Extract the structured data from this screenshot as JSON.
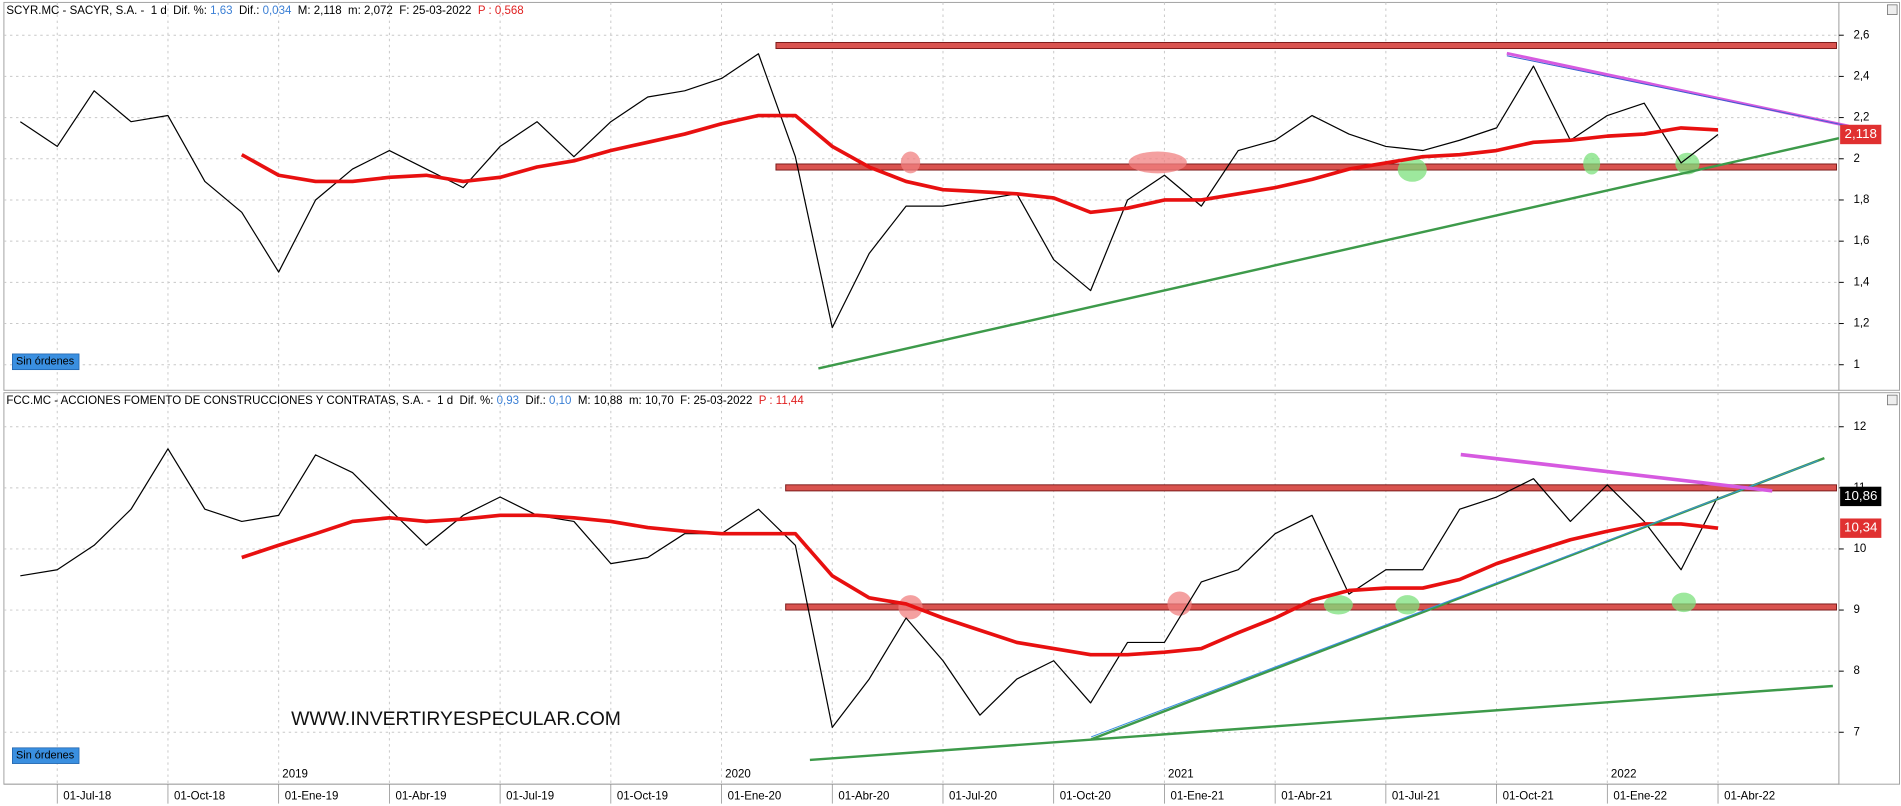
{
  "chart_data": [
    {
      "type": "line",
      "header": [
        {
          "text": "SCYR.MC - SACYR, S.A. -  1 d  Dif. %: ",
          "color": "#000000"
        },
        {
          "text": "1,63",
          "color": "#3a7fd5"
        },
        {
          "text": "  Dif.: ",
          "color": "#000000"
        },
        {
          "text": "0,034",
          "color": "#3a7fd5"
        },
        {
          "text": "  M: 2,118  m: 2,072  F: 25-03-2022  ",
          "color": "#000000"
        },
        {
          "text": "P : 0,568",
          "color": "#e02020"
        }
      ],
      "button": "Sin órdenes",
      "ylim": [
        0.876,
        2.665
      ],
      "yticks": [
        1,
        {
          "value": 1.2,
          "label": "1,2"
        },
        {
          "value": 1.4,
          "label": "1,4"
        },
        {
          "value": 1.6,
          "label": "1,6"
        },
        {
          "value": 1.8,
          "label": "1,8"
        },
        2,
        {
          "value": 2.2,
          "label": "2,2"
        },
        {
          "value": 2.4,
          "label": "2,4"
        },
        {
          "value": 2.6,
          "label": "2,6"
        }
      ],
      "grid": true,
      "levels": [
        {
          "value": 2.55,
          "color": "#d9534f"
        },
        {
          "value": 1.96,
          "color": "#d9534f"
        }
      ],
      "series": [
        {
          "color": "#000000",
          "width": 1,
          "values": [
            2.18,
            2.06,
            2.33,
            2.18,
            2.21,
            1.89,
            1.74,
            1.45,
            1.8,
            1.95,
            2.04,
            1.95,
            1.86,
            2.06,
            2.18,
            2.01,
            2.18,
            2.3,
            2.33,
            2.39,
            2.51,
            2.01,
            1.18,
            1.54,
            1.77,
            1.77,
            1.8,
            1.83,
            1.51,
            1.36,
            1.8,
            1.92,
            1.77,
            2.04,
            2.09,
            2.21,
            2.12,
            2.06,
            2.04,
            2.09,
            2.15,
            2.45,
            2.09,
            2.21,
            2.27,
            1.98,
            2.118,
            null,
            null,
            null
          ]
        },
        {
          "color": "#e81010",
          "width": 3,
          "values": [
            null,
            null,
            null,
            null,
            null,
            null,
            2.02,
            1.92,
            1.89,
            1.89,
            1.91,
            1.92,
            1.89,
            1.91,
            1.96,
            1.99,
            2.04,
            2.08,
            2.12,
            2.17,
            2.21,
            2.21,
            2.06,
            1.96,
            1.89,
            1.85,
            1.84,
            1.83,
            1.81,
            1.74,
            1.76,
            1.8,
            1.8,
            1.83,
            1.86,
            1.9,
            1.95,
            1.98,
            2.01,
            2.02,
            2.04,
            2.08,
            2.09,
            2.11,
            2.12,
            2.15,
            2.14,
            null,
            null,
            null
          ]
        }
      ],
      "price_labels": [
        {
          "value": 2.118,
          "label": "2,118",
          "color": "#e03030"
        }
      ]
    },
    {
      "type": "line",
      "header": [
        {
          "text": "FCC.MC - ACCIONES FOMENTO DE CONSTRUCCIONES Y CONTRATAS, S.A. -  1 d  Dif. %: ",
          "color": "#000000"
        },
        {
          "text": "0,93",
          "color": "#3a7fd5"
        },
        {
          "text": "  Dif.: ",
          "color": "#000000"
        },
        {
          "text": "0,10",
          "color": "#3a7fd5"
        },
        {
          "text": "  M: 10,88  m: 10,70  F: 25-03-2022  ",
          "color": "#000000"
        },
        {
          "text": "P : 11,44",
          "color": "#e02020"
        }
      ],
      "button": "Sin órdenes",
      "watermark": "WWW.INVERTIRYESPECULAR.COM",
      "categories": [
        null,
        "01-Jul-18",
        null,
        null,
        "01-Oct-18",
        null,
        null,
        "01-Ene-19",
        null,
        null,
        "01-Abr-19",
        null,
        null,
        "01-Jul-19",
        null,
        null,
        "01-Oct-19",
        null,
        null,
        "01-Ene-20",
        null,
        null,
        "01-Abr-20",
        null,
        null,
        "01-Jul-20",
        null,
        null,
        "01-Oct-20",
        null,
        null,
        "01-Ene-21",
        null,
        null,
        "01-Abr-21",
        null,
        null,
        "01-Jul-21",
        null,
        null,
        "01-Oct-21",
        null,
        null,
        "01-Ene-22",
        null,
        null,
        "01-Abr-22",
        null,
        null,
        null
      ],
      "year_labels": [
        null,
        null,
        null,
        null,
        null,
        null,
        null,
        "2019",
        null,
        null,
        null,
        null,
        null,
        null,
        null,
        null,
        null,
        null,
        null,
        "2020",
        null,
        null,
        null,
        null,
        null,
        null,
        null,
        null,
        null,
        null,
        null,
        "2021",
        null,
        null,
        null,
        null,
        null,
        null,
        null,
        null,
        null,
        null,
        null,
        "2022",
        null,
        null,
        null,
        null,
        null,
        null
      ],
      "ylim": [
        6.15,
        12.24
      ],
      "yticks": [
        7,
        8,
        9,
        10,
        11,
        12
      ],
      "grid": true,
      "levels": [
        {
          "value": 11.0,
          "color": "#d9534f"
        },
        {
          "value": 9.05,
          "color": "#d9534f"
        }
      ],
      "series": [
        {
          "color": "#000000",
          "width": 1,
          "values": [
            9.56,
            9.66,
            10.06,
            10.65,
            11.64,
            10.65,
            10.45,
            10.55,
            11.54,
            11.25,
            10.65,
            10.06,
            10.55,
            10.85,
            10.55,
            10.45,
            9.76,
            9.86,
            10.25,
            10.25,
            10.65,
            10.06,
            7.08,
            7.87,
            8.87,
            8.17,
            7.28,
            7.87,
            8.17,
            7.48,
            8.47,
            8.47,
            9.46,
            9.66,
            10.25,
            10.55,
            9.26,
            9.66,
            9.66,
            10.65,
            10.85,
            11.15,
            10.45,
            11.05,
            10.45,
            9.66,
            10.86,
            null,
            null,
            null
          ]
        },
        {
          "color": "#e81010",
          "width": 3,
          "values": [
            null,
            null,
            null,
            null,
            null,
            null,
            9.86,
            10.06,
            10.25,
            10.45,
            10.51,
            10.45,
            10.49,
            10.55,
            10.55,
            10.51,
            10.45,
            10.35,
            10.29,
            10.25,
            10.25,
            10.25,
            9.56,
            9.2,
            9.1,
            8.87,
            8.67,
            8.47,
            8.37,
            8.27,
            8.27,
            8.31,
            8.37,
            8.63,
            8.87,
            9.16,
            9.32,
            9.36,
            9.36,
            9.5,
            9.76,
            9.96,
            10.15,
            10.29,
            10.41,
            10.41,
            10.34,
            null,
            null,
            null
          ]
        }
      ],
      "price_labels": [
        {
          "value": 10.86,
          "label": "10,86",
          "color": "#000000"
        },
        {
          "value": 10.34,
          "label": "10,34",
          "color": "#e03030"
        }
      ]
    }
  ]
}
